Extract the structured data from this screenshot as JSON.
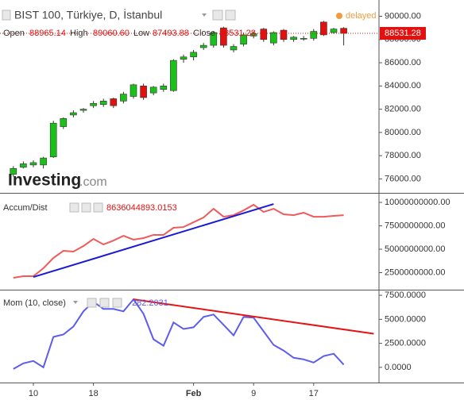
{
  "header": {
    "title": "BIST 100, Türkiye, D, İstanbul",
    "status": "delayed",
    "open_label": "Open",
    "open": "88965.14",
    "high_label": "High",
    "high": "89060.60",
    "low_label": "Low",
    "low": "87493.88",
    "close_label": "Close",
    "close": "88531.28",
    "logo": "Investing",
    "logo_suffix": ".com"
  },
  "chart_data": [
    {
      "type": "candlestick",
      "categories": [
        null,
        null,
        "10",
        null,
        null,
        null,
        null,
        null,
        "18",
        null,
        null,
        null,
        null,
        null,
        null,
        null,
        null,
        null,
        "Feb",
        null,
        null,
        null,
        null,
        null,
        "9",
        null,
        null,
        null,
        null,
        null,
        "17",
        null,
        null,
        null
      ],
      "open": [
        76400,
        77000,
        77200,
        77200,
        77900,
        80500,
        81500,
        81900,
        82300,
        82400,
        82900,
        82700,
        83100,
        84000,
        83400,
        83700,
        83600,
        86300,
        86500,
        87300,
        87500,
        89000,
        87100,
        87600,
        88300,
        88900,
        87700,
        88800,
        88000,
        88100,
        88100,
        89500,
        88600,
        88965.14
      ],
      "high": [
        77100,
        77500,
        77600,
        77900,
        81000,
        81300,
        81900,
        82100,
        82700,
        82900,
        83000,
        83500,
        84200,
        84200,
        84000,
        84200,
        86300,
        86700,
        87100,
        87700,
        88700,
        89100,
        87600,
        88600,
        88700,
        89000,
        88700,
        88900,
        88300,
        88300,
        88900,
        89600,
        89000,
        89060.6
      ],
      "low": [
        76200,
        76900,
        77000,
        76900,
        77800,
        80300,
        81300,
        81700,
        82100,
        82200,
        82100,
        82500,
        82900,
        82800,
        83200,
        83500,
        83500,
        86000,
        86200,
        87100,
        87300,
        87300,
        86900,
        87400,
        88100,
        87800,
        87500,
        87800,
        87800,
        87900,
        87900,
        88300,
        88500,
        87493.88
      ],
      "close": [
        76900,
        77300,
        77400,
        77800,
        80800,
        81200,
        81700,
        82000,
        82500,
        82700,
        82300,
        83300,
        84100,
        83000,
        83900,
        84000,
        86200,
        86500,
        86900,
        87500,
        88600,
        87500,
        87400,
        88400,
        88500,
        88000,
        88600,
        88000,
        88200,
        88100,
        88700,
        88400,
        88900,
        88531.28
      ],
      "last_label": "88531.28",
      "up_color": "#19c119",
      "down_color": "#e31010",
      "ylim": [
        74800,
        91400
      ],
      "yticks": [
        {
          "value": 76000,
          "label": "76000.00"
        },
        {
          "value": 78000,
          "label": "78000.00"
        },
        {
          "value": 80000,
          "label": "80000.00"
        },
        {
          "value": 82000,
          "label": "82000.00"
        },
        {
          "value": 84000,
          "label": "84000.00"
        },
        {
          "value": 86000,
          "label": "86000.00"
        },
        {
          "value": 88000,
          "label": "88000.00"
        },
        {
          "value": 90000,
          "label": "90000.00"
        }
      ]
    },
    {
      "type": "line",
      "title": "Accum/Dist",
      "last_label": "8636044893.0153",
      "color": "#ef5b5b",
      "values": [
        1950000000,
        2120000000,
        2120000000,
        2970000000,
        4070000000,
        4830000000,
        4750000000,
        5340000000,
        6100000000,
        5510000000,
        5930000000,
        6440000000,
        6020000000,
        6190000000,
        6530000000,
        6530000000,
        7290000000,
        7370000000,
        7880000000,
        8390000000,
        9320000000,
        8470000000,
        8640000000,
        9150000000,
        9750000000,
        8980000000,
        9320000000,
        8730000000,
        8640000000,
        8900000000,
        8470000000,
        8470000000,
        8560000000,
        8636044893.0153
      ],
      "trendline": {
        "x": [
          2,
          26
        ],
        "values": [
          2030000000,
          9830000000
        ],
        "color": "#1a1ad6"
      },
      "ylim": [
        680000000,
        10850000000
      ],
      "yticks": [
        {
          "value": 2500000000,
          "label": "2500000000.00"
        },
        {
          "value": 5000000000,
          "label": "5000000000.00"
        },
        {
          "value": 7500000000,
          "label": "7500000000.00"
        },
        {
          "value": 10000000000,
          "label": "10000000000.00"
        }
      ]
    },
    {
      "type": "line",
      "title": "Mom (10, close)",
      "last_label": "282.2031",
      "color": "#5c5cf0",
      "values": [
        -170,
        420,
        670,
        0,
        3170,
        3420,
        4250,
        5830,
        6830,
        6080,
        6080,
        5830,
        7080,
        5580,
        2920,
        2250,
        4670,
        4000,
        4170,
        5250,
        5500,
        4420,
        3330,
        5250,
        5170,
        3750,
        2330,
        1750,
        1000,
        830,
        500,
        1170,
        1420,
        282.2031
      ],
      "trendline": {
        "x": [
          12,
          36
        ],
        "values": [
          7080,
          3500
        ],
        "color": "#e51414"
      },
      "ylim": [
        -1580,
        7920
      ],
      "yticks": [
        {
          "value": 0,
          "label": "0.0000"
        },
        {
          "value": 2500,
          "label": "2500.0000"
        },
        {
          "value": 5000,
          "label": "5000.0000"
        },
        {
          "value": 7500,
          "label": "7500.0000"
        }
      ]
    }
  ]
}
